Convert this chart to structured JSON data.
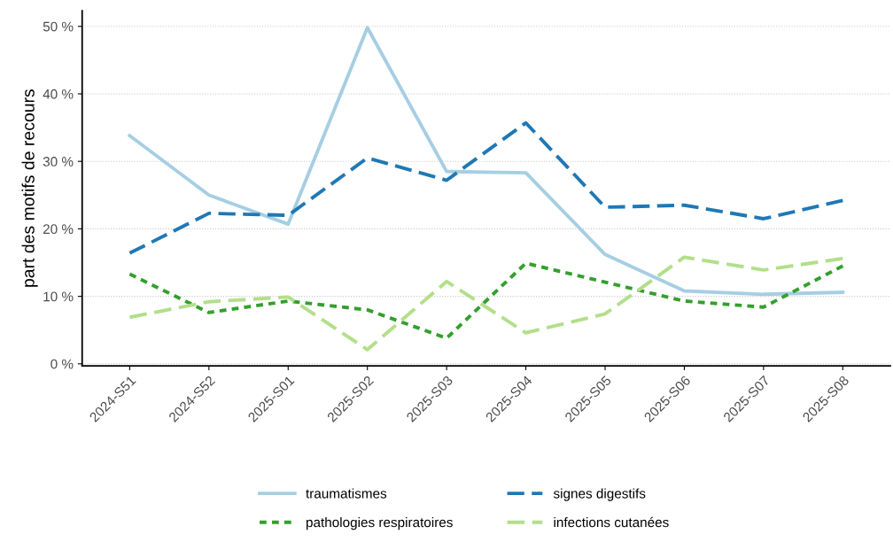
{
  "chart_data": {
    "type": "line",
    "ylabel": "part des motifs de recours",
    "categories": [
      "2024-S51",
      "2024-S52",
      "2025-S01",
      "2025-S02",
      "2025-S03",
      "2025-S04",
      "2025-S05",
      "2025-S06",
      "2025-S07",
      "2025-S08"
    ],
    "series": [
      {
        "name": "traumatismes",
        "color": "#a6cee3",
        "line_style": "solid",
        "values": [
          33.8,
          25.0,
          20.7,
          49.8,
          28.5,
          28.3,
          16.2,
          10.8,
          10.3,
          10.6
        ]
      },
      {
        "name": "signes digestifs",
        "color": "#1f78b4",
        "line_style": "dashed",
        "values": [
          16.4,
          22.3,
          22.0,
          30.5,
          27.2,
          35.7,
          23.2,
          23.5,
          21.5,
          24.2
        ]
      },
      {
        "name": "pathologies respiratoires",
        "color": "#33a02c",
        "line_style": "dotted",
        "values": [
          13.3,
          7.6,
          9.3,
          8.0,
          3.8,
          14.9,
          12.1,
          9.3,
          8.4,
          14.5
        ]
      },
      {
        "name": "infections cutanées",
        "color": "#b2df8a",
        "line_style": "dashed",
        "values": [
          6.9,
          9.2,
          9.9,
          2.1,
          12.2,
          4.6,
          7.4,
          15.8,
          13.9,
          15.6
        ]
      }
    ],
    "ylim": [
      -0.3,
      52.3
    ],
    "yticks": [
      {
        "value": 0,
        "label": "0 %"
      },
      {
        "value": 10,
        "label": "10 %"
      },
      {
        "value": 20,
        "label": "20 %"
      },
      {
        "value": 30,
        "label": "30 %"
      },
      {
        "value": 40,
        "label": "40 %"
      },
      {
        "value": 50,
        "label": "50 %"
      }
    ],
    "grid": "y",
    "legend": "bottom",
    "marker": "none"
  }
}
